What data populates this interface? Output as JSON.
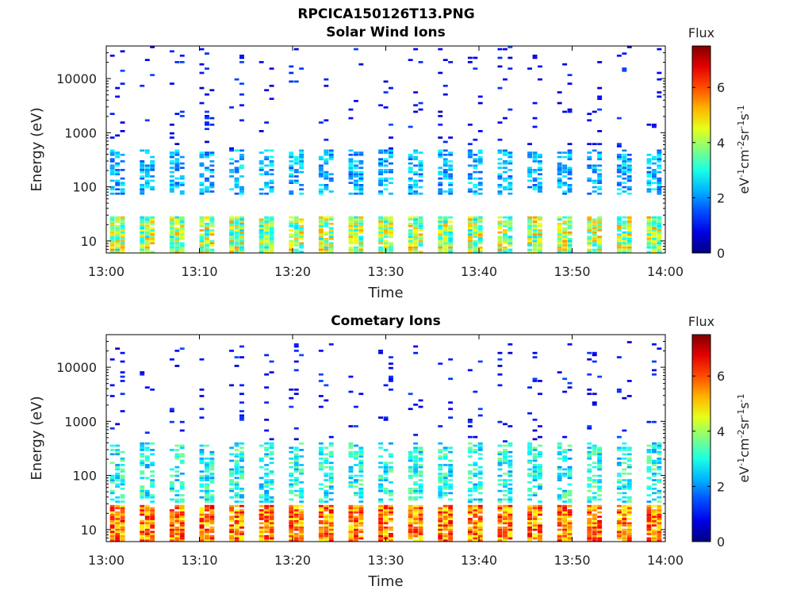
{
  "figure_title": "RPCICA150126T13.PNG",
  "colors": {
    "axis": "#000000",
    "background": "#ffffff"
  },
  "chart_data": [
    {
      "type": "heatmap",
      "title": "Solar Wind Ions",
      "xlabel": "Time",
      "ylabel": "Energy (eV)",
      "x_ticks": [
        "13:00",
        "13:10",
        "13:20",
        "13:30",
        "13:40",
        "13:50",
        "14:00"
      ],
      "x_range_minutes": [
        0,
        60
      ],
      "y_scale": "log",
      "y_ticks": [
        {
          "value": 10,
          "label": "10"
        },
        {
          "value": 100,
          "label": "100"
        },
        {
          "value": 1000,
          "label": "1000"
        },
        {
          "value": 10000,
          "label": "10000"
        }
      ],
      "y_range": [
        6,
        40000
      ],
      "colorbar": {
        "title": "Flux",
        "unit": "eV-1cm-2sr-1s-1",
        "range": [
          0,
          7.5
        ],
        "ticks": [
          "0",
          "2",
          "4",
          "6"
        ],
        "colormap": "jet"
      },
      "features": {
        "scan_period_min": 3.2,
        "low_energy_band_eV": [
          6,
          28
        ],
        "low_band_flux": [
          2.5,
          5.5
        ],
        "mid_energy_band_eV": [
          70,
          500
        ],
        "mid_band_flux": [
          1.5,
          3.0
        ],
        "high_energy_sparse_eV": [
          500,
          40000
        ],
        "high_band_flux": [
          0.5,
          1.5
        ]
      },
      "grid": false
    },
    {
      "type": "heatmap",
      "title": "Cometary Ions",
      "xlabel": "Time",
      "ylabel": "Energy (eV)",
      "x_ticks": [
        "13:00",
        "13:10",
        "13:20",
        "13:30",
        "13:40",
        "13:50",
        "14:00"
      ],
      "x_range_minutes": [
        0,
        60
      ],
      "y_scale": "log",
      "y_ticks": [
        {
          "value": 10,
          "label": "10"
        },
        {
          "value": 100,
          "label": "100"
        },
        {
          "value": 1000,
          "label": "1000"
        },
        {
          "value": 10000,
          "label": "10000"
        }
      ],
      "y_range": [
        6,
        40000
      ],
      "colorbar": {
        "title": "Flux",
        "unit": "eV-1cm-2sr-1s-1",
        "range": [
          0,
          7.5
        ],
        "ticks": [
          "0",
          "2",
          "4",
          "6"
        ],
        "colormap": "jet"
      },
      "features": {
        "scan_period_min": 3.2,
        "low_energy_band_eV": [
          6,
          28
        ],
        "low_band_flux": [
          4.5,
          6.8
        ],
        "mid_energy_band_eV": [
          30,
          400
        ],
        "mid_band_flux": [
          2.0,
          3.8
        ],
        "high_energy_sparse_eV": [
          400,
          30000
        ],
        "high_band_flux": [
          0.5,
          1.5
        ]
      },
      "grid": false
    }
  ]
}
